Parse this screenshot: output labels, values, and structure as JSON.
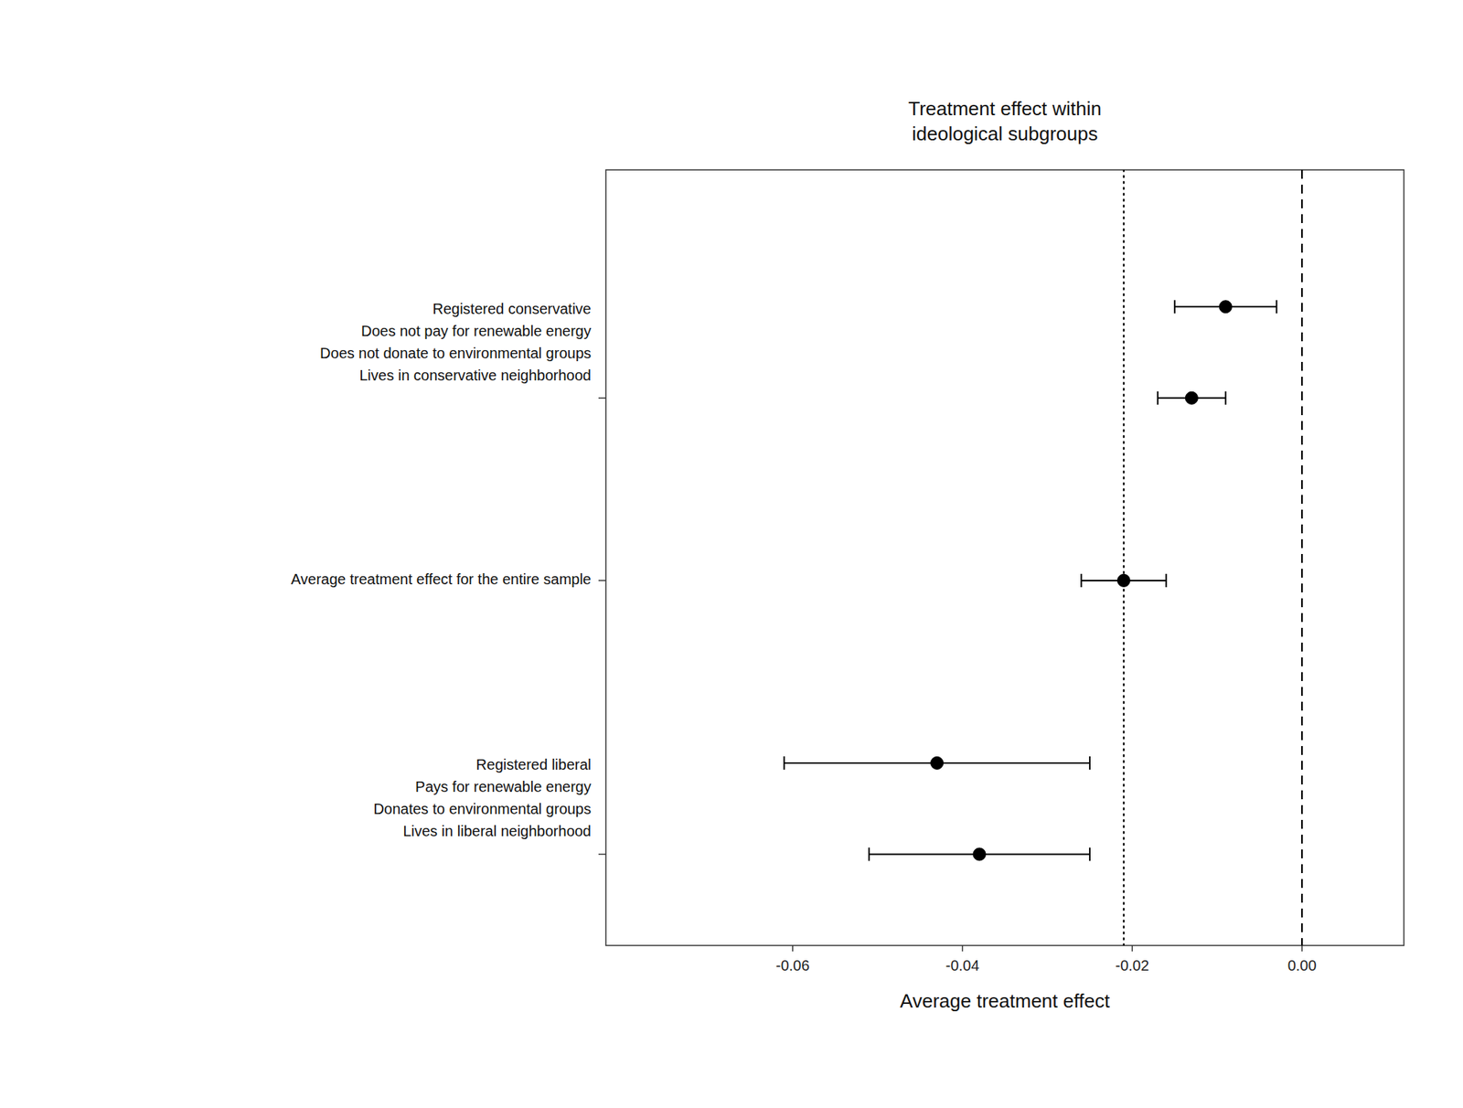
{
  "chart_data": {
    "type": "errorbar",
    "title": "Treatment effect within\nideological subgroups",
    "xlabel": "Average treatment effect",
    "x": [
      -0.009,
      -0.013,
      -0.021,
      -0.043,
      -0.038
    ],
    "y": [
      7,
      6,
      4,
      2,
      1
    ],
    "errors_low": [
      0.006,
      0.004,
      0.005,
      0.018,
      0.013
    ],
    "errors_high": [
      0.006,
      0.004,
      0.005,
      0.018,
      0.013
    ],
    "color": "#000000",
    "marker": "circle",
    "xlim": [
      -0.082,
      0.012
    ],
    "ylim": [
      0,
      8.5
    ],
    "xticks": [
      -0.06,
      -0.04,
      -0.02,
      {
        "value": 0.0,
        "label": "0.00"
      }
    ],
    "yticks": [
      6.0,
      4.0,
      1.0
    ],
    "tick_labels": "x",
    "vlines": [
      {
        "x": -0.021,
        "line_style": "dotted"
      },
      {
        "x": 0.0,
        "line_style": "dashed"
      }
    ],
    "annotations": [
      {
        "text": "Registered conservative\nDoes not pay for renewable energy\nDoes not donate to environmental groups\nLives in conservative neighborhood",
        "y": 6.6
      },
      {
        "text": "Average treatment effect for the entire sample",
        "y": 4.0
      },
      {
        "text": "Registered liberal\nPays for renewable energy\nDonates to environmental groups\nLives in liberal neighborhood",
        "y": 1.6
      }
    ]
  }
}
